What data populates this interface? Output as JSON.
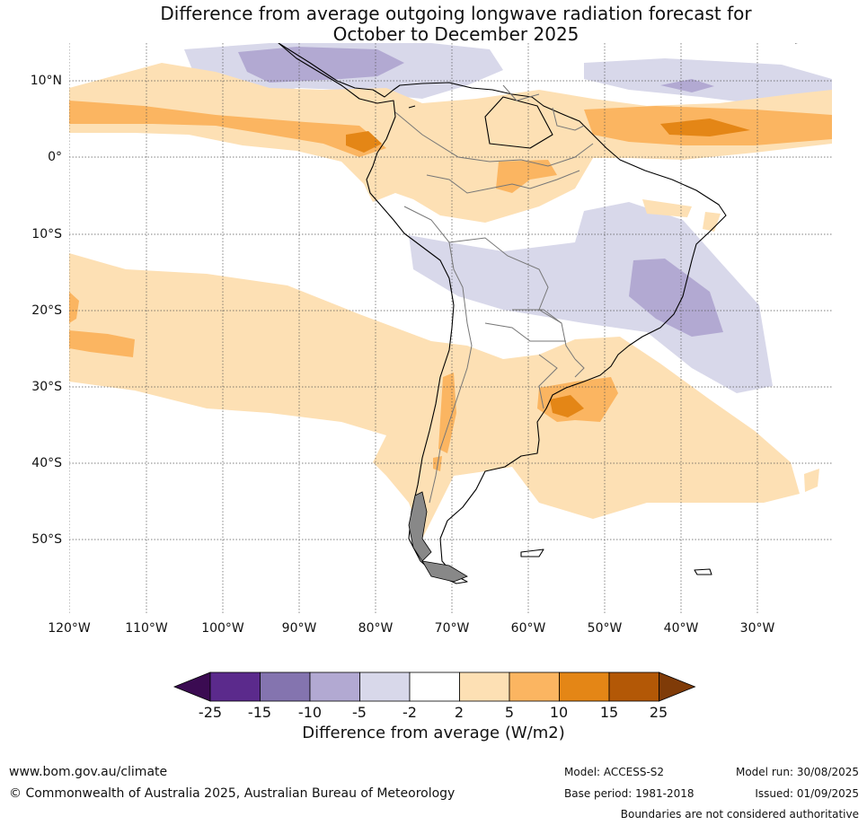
{
  "title_line1": "Difference from average outgoing longwave radiation forecast for",
  "title_line2": "October to December 2025",
  "lat_labels": [
    "10°N",
    "0°",
    "10°S",
    "20°S",
    "30°S",
    "40°S",
    "50°S"
  ],
  "lon_labels": [
    "120°W",
    "110°W",
    "100°W",
    "90°W",
    "80°W",
    "70°W",
    "60°W",
    "50°W",
    "40°W",
    "30°W"
  ],
  "colorbar": {
    "ticks": [
      "-25",
      "-15",
      "-10",
      "-5",
      "-2",
      "2",
      "5",
      "10",
      "15",
      "25"
    ],
    "colors": [
      "#3b0b52",
      "#5b2a8c",
      "#8474af",
      "#b2a9d2",
      "#d8d8ea",
      "#ffffff",
      "#fde0b4",
      "#fbb561",
      "#e48616",
      "#b35806",
      "#7f3b08"
    ],
    "title": "Difference from average (W/m2)"
  },
  "footer": {
    "website": "www.bom.gov.au/climate",
    "copyright": "© Commonwealth of Australia 2025, Australian Bureau of Meteorology",
    "model": "Model: ACCESS-S2",
    "base_period": "Base period: 1981-2018",
    "model_run": "Model run: 30/08/2025",
    "issued": "Issued: 01/09/2025",
    "disclaimer": "Boundaries are not considered authoritative"
  }
}
